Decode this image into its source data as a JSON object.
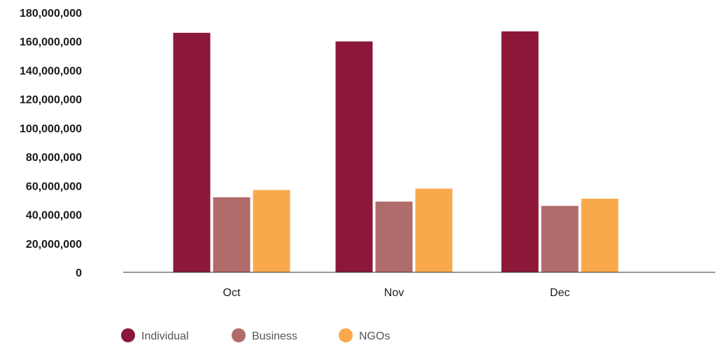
{
  "chart_data": {
    "type": "bar",
    "title": "",
    "xlabel": "",
    "ylabel": "",
    "categories": [
      "Oct",
      "Nov",
      "Dec"
    ],
    "ylim": [
      0,
      180000000
    ],
    "yticks": [
      "0",
      "20,000,000",
      "40,000,000",
      "60,000,000",
      "80,000,000",
      "100,000,000",
      "120,000,000",
      "140,000,000",
      "160,000,000",
      "180,000,000"
    ],
    "ytick_values": [
      0,
      20000000,
      40000000,
      60000000,
      80000000,
      100000000,
      120000000,
      140000000,
      160000000,
      180000000
    ],
    "grid": false,
    "legend_position": "bottom",
    "series": [
      {
        "name": "Individual",
        "color": "#8c1738",
        "values": [
          166000000,
          160000000,
          167000000
        ]
      },
      {
        "name": "Business",
        "color": "#b06b6b",
        "values": [
          52000000,
          49000000,
          46000000
        ]
      },
      {
        "name": "NGOs",
        "color": "#f9a94b",
        "values": [
          57000000,
          58000000,
          51000000
        ]
      }
    ]
  }
}
